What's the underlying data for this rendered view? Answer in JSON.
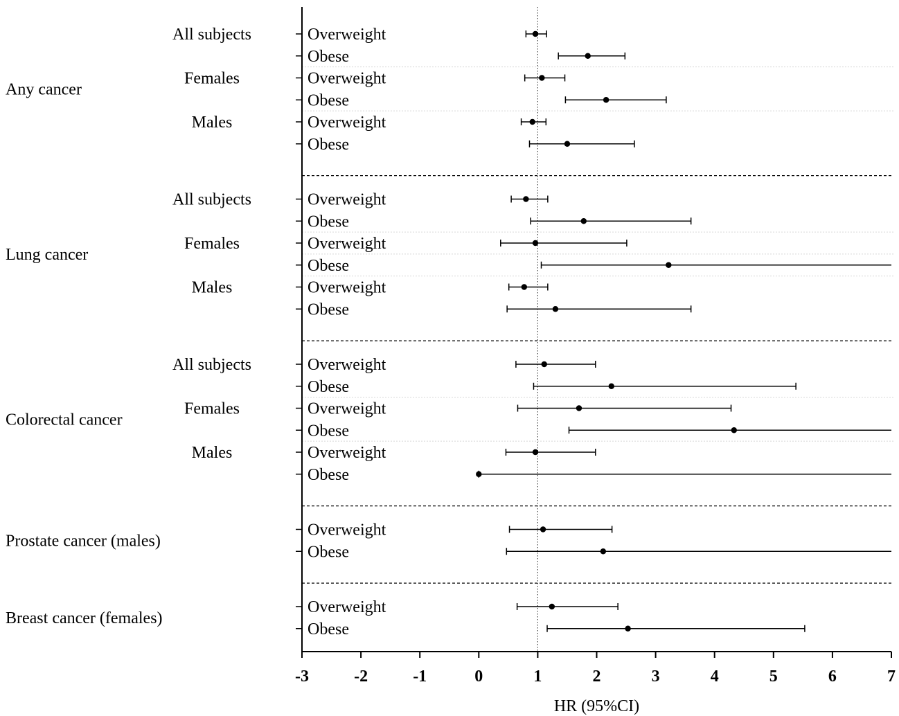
{
  "chart_data": {
    "type": "forest",
    "xlabel": "HR (95%CI)",
    "xlim": [
      -3,
      7
    ],
    "xticks": [
      -3,
      -2,
      -1,
      0,
      1,
      2,
      3,
      4,
      5,
      6,
      7
    ],
    "reference_line": 1,
    "groups": [
      {
        "name": "Any cancer",
        "subgroups": [
          {
            "name": "All subjects",
            "rows": [
              {
                "label": "Overweight",
                "hr": 0.96,
                "lo": 0.8,
                "hi": 1.15
              },
              {
                "label": "Obese",
                "hr": 1.85,
                "lo": 1.35,
                "hi": 2.48
              }
            ]
          },
          {
            "name": "Females",
            "rows": [
              {
                "label": "Overweight",
                "hr": 1.07,
                "lo": 0.78,
                "hi": 1.46
              },
              {
                "label": "Obese",
                "hr": 2.16,
                "lo": 1.47,
                "hi": 3.18
              }
            ]
          },
          {
            "name": "Males",
            "rows": [
              {
                "label": "Overweight",
                "hr": 0.91,
                "lo": 0.72,
                "hi": 1.14
              },
              {
                "label": "Obese",
                "hr": 1.5,
                "lo": 0.86,
                "hi": 2.64
              }
            ]
          }
        ]
      },
      {
        "name": "Lung cancer",
        "subgroups": [
          {
            "name": "All subjects",
            "rows": [
              {
                "label": "Overweight",
                "hr": 0.8,
                "lo": 0.55,
                "hi": 1.17
              },
              {
                "label": "Obese",
                "hr": 1.78,
                "lo": 0.88,
                "hi": 3.6
              }
            ]
          },
          {
            "name": "Females",
            "rows": [
              {
                "label": "Overweight",
                "hr": 0.96,
                "lo": 0.37,
                "hi": 2.51
              }
            ]
          },
          {
            "name": "",
            "rows": [
              {
                "label": "Obese",
                "hr": 3.22,
                "lo": 1.06,
                "hi": 7.0
              }
            ]
          },
          {
            "name": "Males",
            "rows": [
              {
                "label": "Overweight",
                "hr": 0.77,
                "lo": 0.51,
                "hi": 1.17
              },
              {
                "label": "Obese",
                "hr": 1.3,
                "lo": 0.48,
                "hi": 3.6
              }
            ]
          }
        ]
      },
      {
        "name": "Colorectal cancer",
        "subgroups": [
          {
            "name": "All subjects",
            "rows": [
              {
                "label": "Overweight",
                "hr": 1.11,
                "lo": 0.63,
                "hi": 1.98
              },
              {
                "label": "Obese",
                "hr": 2.25,
                "lo": 0.93,
                "hi": 5.38
              }
            ]
          },
          {
            "name": "Females",
            "rows": [
              {
                "label": "Overweight",
                "hr": 1.7,
                "lo": 0.66,
                "hi": 4.28
              },
              {
                "label": "Obese",
                "hr": 4.33,
                "lo": 1.53,
                "hi": 7.0
              }
            ]
          },
          {
            "name": "Males",
            "rows": [
              {
                "label": "Overweight",
                "hr": 0.96,
                "lo": 0.46,
                "hi": 1.98
              },
              {
                "label": "Obese",
                "hr": 0.0,
                "lo": 0.0,
                "hi": 7.0
              }
            ]
          }
        ]
      },
      {
        "name": "Prostate cancer (males)",
        "subgroups": [
          {
            "name": "",
            "rows": [
              {
                "label": "Overweight",
                "hr": 1.09,
                "lo": 0.52,
                "hi": 2.26
              },
              {
                "label": "Obese",
                "hr": 2.11,
                "lo": 0.47,
                "hi": 7.0
              }
            ]
          }
        ]
      },
      {
        "name": "Breast cancer (females)",
        "subgroups": [
          {
            "name": "",
            "rows": [
              {
                "label": "Overweight",
                "hr": 1.24,
                "lo": 0.65,
                "hi": 2.36
              },
              {
                "label": "Obese",
                "hr": 2.53,
                "lo": 1.16,
                "hi": 5.53
              }
            ]
          }
        ]
      }
    ]
  }
}
